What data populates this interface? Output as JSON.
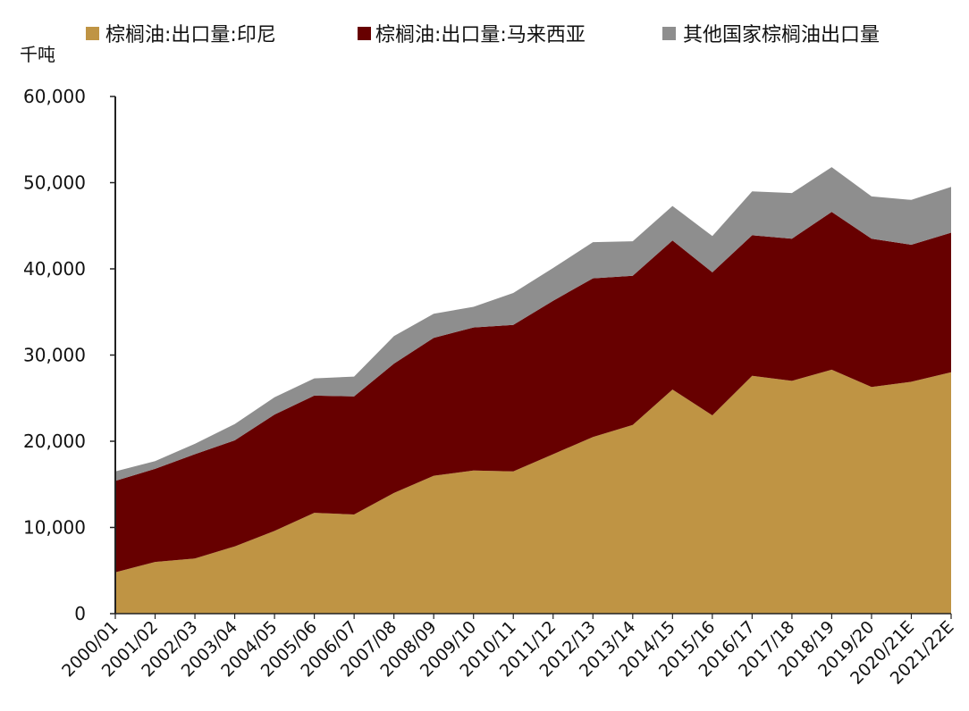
{
  "chart_data": {
    "type": "area",
    "stacked": true,
    "unit_label": "千吨",
    "categories": [
      "2000/01",
      "2001/02",
      "2002/03",
      "2003/04",
      "2004/05",
      "2005/06",
      "2006/07",
      "2007/08",
      "2008/09",
      "2009/10",
      "2010/11",
      "2011/12",
      "2012/13",
      "2013/14",
      "2014/15",
      "2015/16",
      "2016/17",
      "2017/18",
      "2018/19",
      "2019/20",
      "2020/21E",
      "2021/22E"
    ],
    "yticks": [
      "0",
      "10,000",
      "20,000",
      "30,000",
      "40,000",
      "50,000",
      "60,000"
    ],
    "ylim": [
      0,
      60000
    ],
    "legend_position": "top",
    "grid": false,
    "series": [
      {
        "name": "棕榈油:出口量:印尼",
        "color": "#bf9444",
        "values": [
          4800,
          6000,
          6400,
          7800,
          9600,
          11700,
          11500,
          14000,
          16000,
          16600,
          16500,
          18500,
          20500,
          21900,
          26000,
          23000,
          27600,
          27000,
          28300,
          26300,
          26900,
          28000
        ]
      },
      {
        "name": "棕榈油:出口量:马来西亚",
        "color": "#670000",
        "values": [
          10600,
          10800,
          12100,
          12300,
          13500,
          13600,
          13700,
          15000,
          16000,
          16600,
          17000,
          17800,
          18400,
          17300,
          17300,
          16600,
          16300,
          16500,
          18300,
          17200,
          15900,
          16200
        ]
      },
      {
        "name": "其他国家棕榈油出口量",
        "color": "#8e8e8e",
        "values": [
          1100,
          900,
          1200,
          1900,
          2000,
          2000,
          2300,
          3200,
          2800,
          2400,
          3700,
          3800,
          4200,
          4000,
          4000,
          4200,
          5100,
          5300,
          5200,
          4900,
          5200,
          5300
        ]
      }
    ]
  }
}
